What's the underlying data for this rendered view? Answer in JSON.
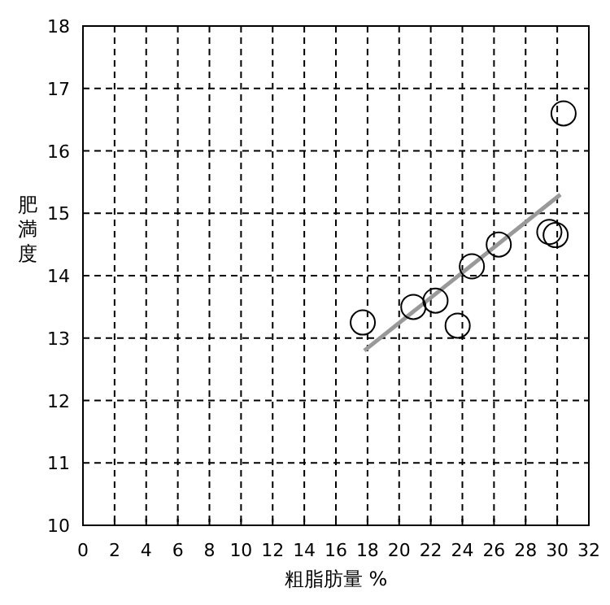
{
  "chart_data": {
    "type": "scatter",
    "xlabel": "粗脂肪量  %",
    "ylabel": "肥満度",
    "xlim": [
      0,
      32
    ],
    "xticks": [
      0,
      2,
      4,
      6,
      8,
      10,
      12,
      14,
      16,
      18,
      20,
      22,
      24,
      26,
      28,
      30,
      32
    ],
    "ylim": [
      10,
      18
    ],
    "yticks": [
      10,
      11,
      12,
      13,
      14,
      15,
      16,
      17,
      18
    ],
    "grid": true,
    "series": [
      {
        "marker": "circle",
        "color": "#000000",
        "x": [
          17.7,
          20.9,
          22.3,
          23.7,
          24.6,
          26.3,
          29.5,
          29.9,
          30.4
        ],
        "values": [
          13.25,
          13.5,
          13.6,
          13.2,
          14.15,
          14.5,
          14.7,
          14.65,
          16.6
        ]
      },
      {
        "type": "line",
        "marker": "none",
        "color": "#999999",
        "x": [
          17.8,
          30.2
        ],
        "values": [
          12.8,
          15.3
        ]
      }
    ]
  }
}
